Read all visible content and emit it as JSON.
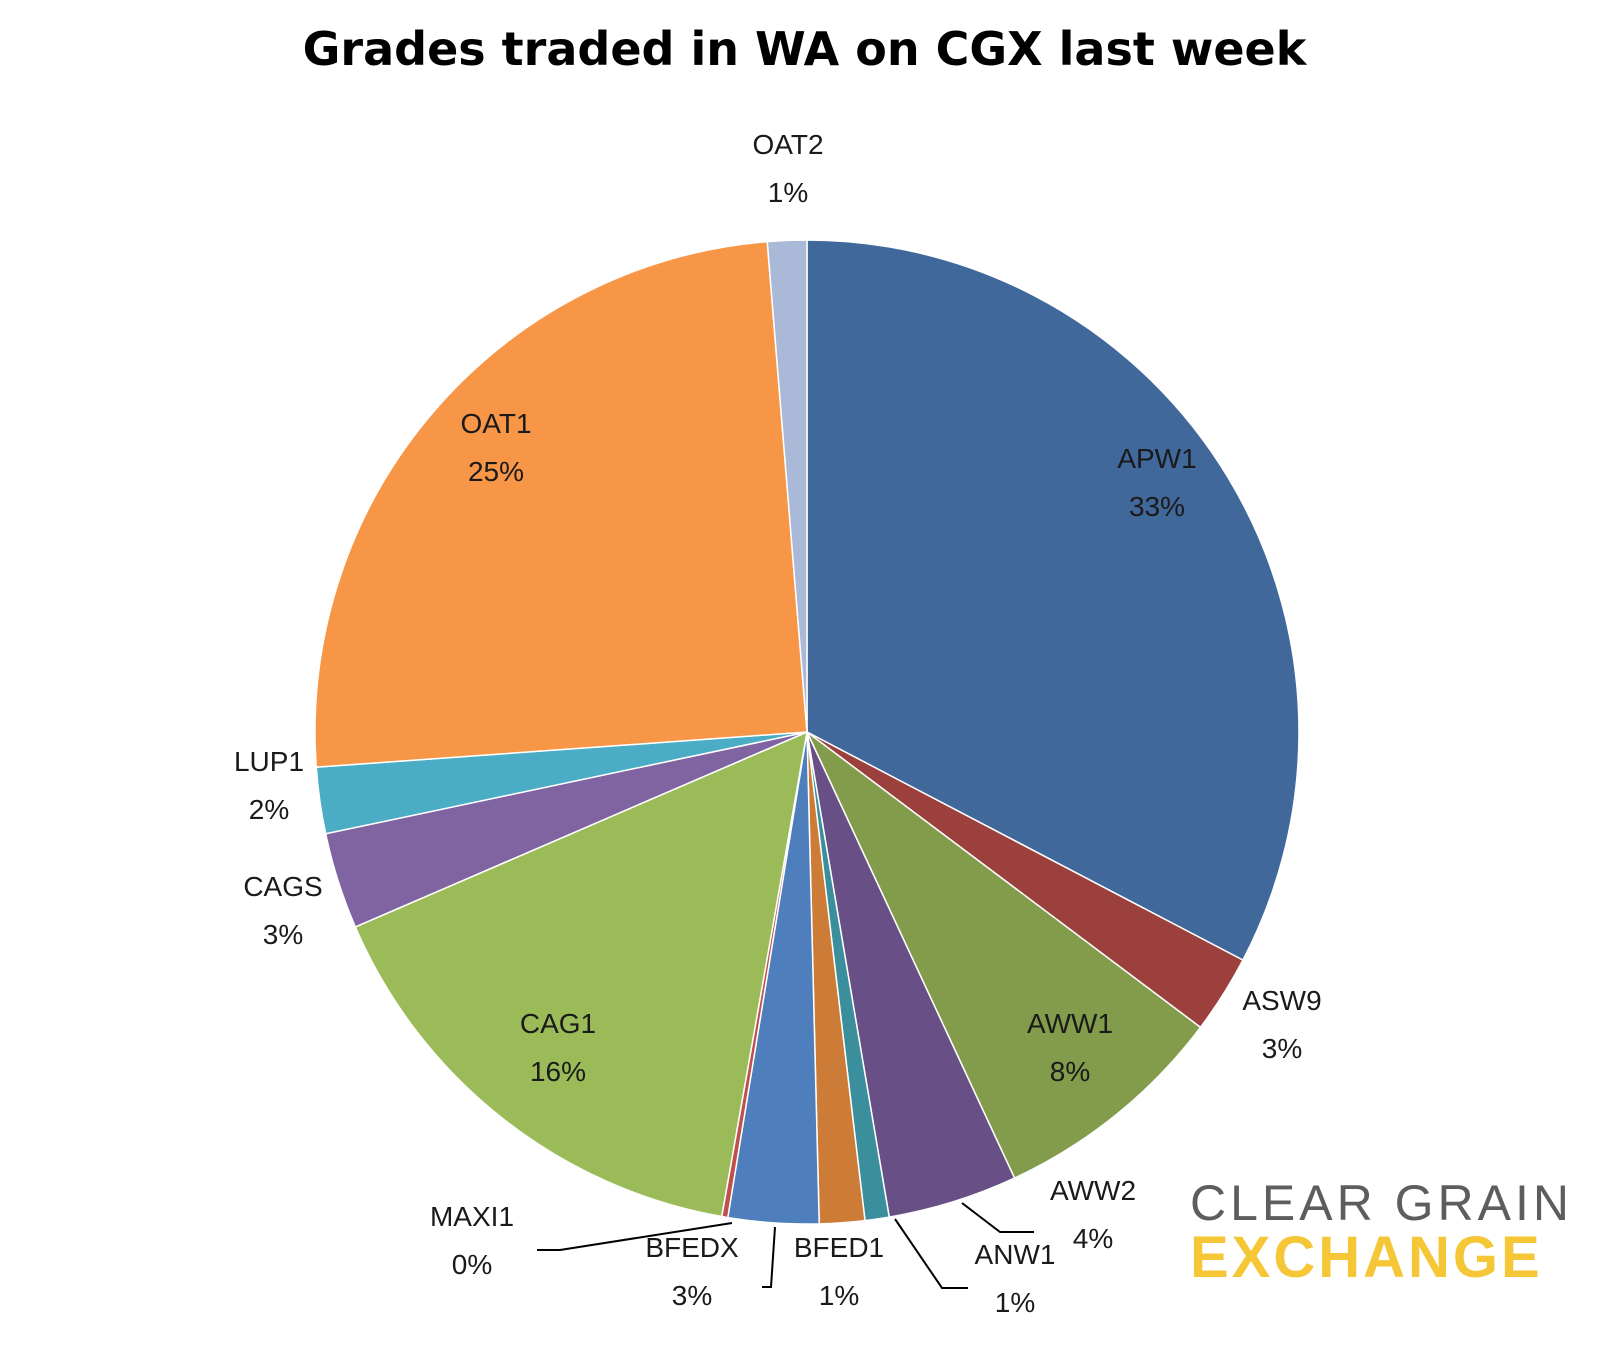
{
  "colors": {
    "APW1": "#41689a",
    "ASW9": "#9c403d",
    "AWW1": "#829c4b",
    "AWW2": "#684f85",
    "ANW1": "#3b8f9c",
    "BFED1": "#cc7c37",
    "BFEDX": "#4e7fbc",
    "MAXI1": "#c0504d",
    "CAG1": "#9bbb59",
    "CAGS": "#8064a2",
    "LUP1": "#4bacc6",
    "OAT1": "#f79646",
    "OAT2": "#aab9d8"
  },
  "chart_data": {
    "type": "pie",
    "title": "Grades traded in WA on CGX last week",
    "slices": [
      {
        "name": "APW1",
        "label": "APW1",
        "pct_label": "33%",
        "value": 33.0
      },
      {
        "name": "ASW9",
        "label": "ASW9",
        "pct_label": "3%",
        "value": 2.6
      },
      {
        "name": "AWW1",
        "label": "AWW1",
        "pct_label": "8%",
        "value": 7.9
      },
      {
        "name": "AWW2",
        "label": "AWW2",
        "pct_label": "4%",
        "value": 4.3
      },
      {
        "name": "ANW1",
        "label": "ANW1",
        "pct_label": "1%",
        "value": 0.8
      },
      {
        "name": "BFED1",
        "label": "BFED1",
        "pct_label": "1%",
        "value": 1.5
      },
      {
        "name": "BFEDX",
        "label": "BFEDX",
        "pct_label": "3%",
        "value": 3.0
      },
      {
        "name": "MAXI1",
        "label": "MAXI1",
        "pct_label": "0%",
        "value": 0.2
      },
      {
        "name": "CAG1",
        "label": "CAG1",
        "pct_label": "16%",
        "value": 15.9
      },
      {
        "name": "CAGS",
        "label": "CAGS",
        "pct_label": "3%",
        "value": 3.2
      },
      {
        "name": "LUP1",
        "label": "LUP1",
        "pct_label": "2%",
        "value": 2.2
      },
      {
        "name": "OAT1",
        "label": "OAT1",
        "pct_label": "25%",
        "value": 25.1
      },
      {
        "name": "OAT2",
        "label": "OAT2",
        "pct_label": "1%",
        "value": 1.3
      }
    ]
  },
  "logo": {
    "line1": "CLEAR GRAIN",
    "line2": "EXCHANGE"
  }
}
